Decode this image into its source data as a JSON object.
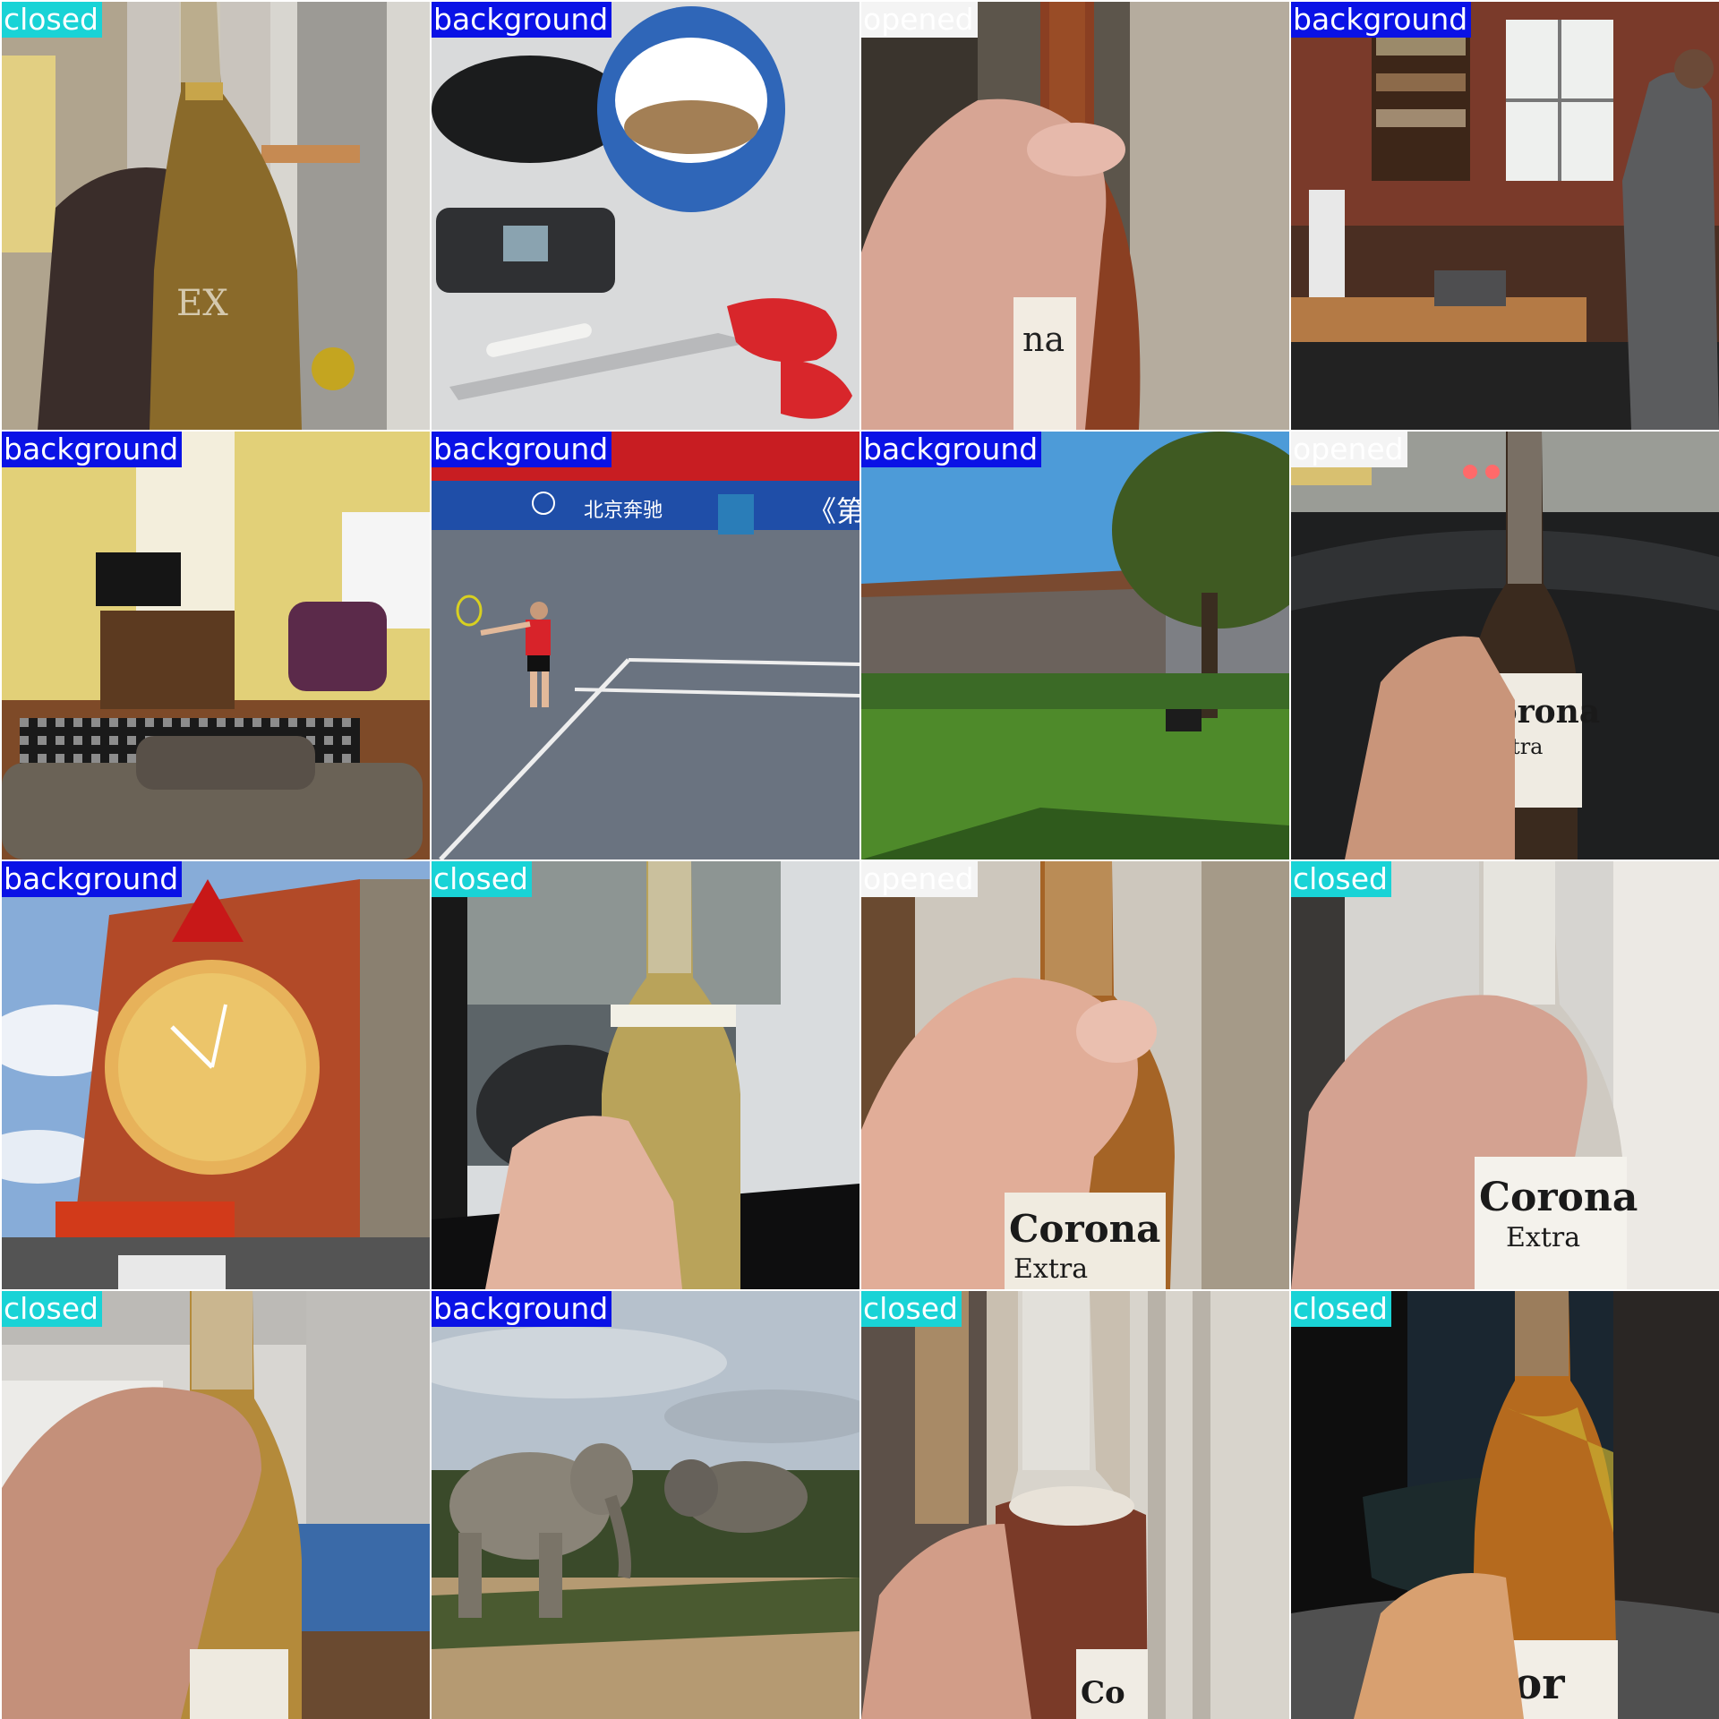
{
  "tiles": [
    {
      "label": "closed",
      "scene": "hand holding a Corona beer bottle in a bright room",
      "label_color": "#19d3d6"
    },
    {
      "label": "background",
      "scene": "coffee cup, phone, scissors and glasses case on a table",
      "label_color": "#0a12e6"
    },
    {
      "label": "opened",
      "scene": "hand holding an amber beer bottle",
      "label_color": "#f4f4f4"
    },
    {
      "label": "background",
      "scene": "library room with bookshelves, projector and a man",
      "label_color": "#0a12e6"
    },
    {
      "label": "background",
      "scene": "living room with sofa, tv and armchair",
      "label_color": "#0a12e6"
    },
    {
      "label": "background",
      "scene": "tennis player serving on blue court",
      "label_color": "#0a12e6"
    },
    {
      "label": "background",
      "scene": "park lawn with tree, bench and shed",
      "label_color": "#0a12e6"
    },
    {
      "label": "opened",
      "scene": "hand holding a Corona Extra bottle inside a car at night",
      "label_color": "#f4f4f4"
    },
    {
      "label": "background",
      "scene": "building with a large clock mural under blue sky",
      "label_color": "#0a12e6"
    },
    {
      "label": "closed",
      "scene": "hand holding a beer bottle by a car window",
      "label_color": "#19d3d6"
    },
    {
      "label": "opened",
      "scene": "hand holding a Corona Extra bottle close up",
      "label_color": "#f4f4f4"
    },
    {
      "label": "closed",
      "scene": "hand holding a Corona Extra bottle near a wall",
      "label_color": "#19d3d6"
    },
    {
      "label": "closed",
      "scene": "hand holding a beer bottle in a kitchen",
      "label_color": "#19d3d6"
    },
    {
      "label": "background",
      "scene": "elephants in savanna bush",
      "label_color": "#0a12e6"
    },
    {
      "label": "closed",
      "scene": "hand holding a half-empty Corona bottle",
      "label_color": "#19d3d6"
    },
    {
      "label": "closed",
      "scene": "hand holding a Corona bottle in a car at night",
      "label_color": "#19d3d6"
    }
  ],
  "bottle_text": {
    "corona": "Corona",
    "extra": "Extra"
  }
}
